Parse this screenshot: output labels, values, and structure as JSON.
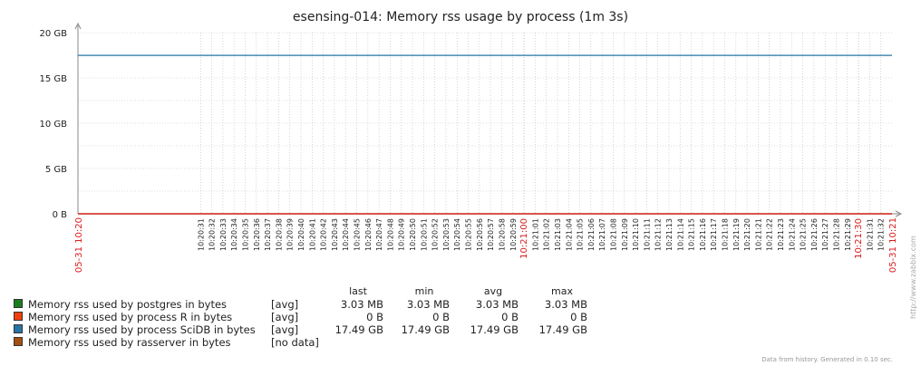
{
  "chart_data": {
    "type": "line",
    "title": "esensing-014: Memory rss usage by process (1m 3s)",
    "yunit": "GB",
    "ylim": [
      0,
      20
    ],
    "yticks": [
      "20 GB",
      "15 GB",
      "10 GB",
      "5 GB",
      "0 B"
    ],
    "ytick_values": [
      20,
      15,
      10,
      5,
      0
    ],
    "x_start_label": "05-31 10:20",
    "x_end_label": "05-31 10:21",
    "x_ticks": [
      {
        "label": "10:20:31",
        "s": 31,
        "red": false
      },
      {
        "label": "10:20:32",
        "s": 32,
        "red": false
      },
      {
        "label": "10:20:33",
        "s": 33,
        "red": false
      },
      {
        "label": "10:20:34",
        "s": 34,
        "red": false
      },
      {
        "label": "10:20:35",
        "s": 35,
        "red": false
      },
      {
        "label": "10:20:36",
        "s": 36,
        "red": false
      },
      {
        "label": "10:20:37",
        "s": 37,
        "red": false
      },
      {
        "label": "10:20:38",
        "s": 38,
        "red": false
      },
      {
        "label": "10:20:39",
        "s": 39,
        "red": false
      },
      {
        "label": "10:20:40",
        "s": 40,
        "red": false
      },
      {
        "label": "10:20:41",
        "s": 41,
        "red": false
      },
      {
        "label": "10:20:42",
        "s": 42,
        "red": false
      },
      {
        "label": "10:20:43",
        "s": 43,
        "red": false
      },
      {
        "label": "10:20:44",
        "s": 44,
        "red": false
      },
      {
        "label": "10:20:45",
        "s": 45,
        "red": false
      },
      {
        "label": "10:20:46",
        "s": 46,
        "red": false
      },
      {
        "label": "10:20:47",
        "s": 47,
        "red": false
      },
      {
        "label": "10:20:48",
        "s": 48,
        "red": false
      },
      {
        "label": "10:20:49",
        "s": 49,
        "red": false
      },
      {
        "label": "10:20:50",
        "s": 50,
        "red": false
      },
      {
        "label": "10:20:51",
        "s": 51,
        "red": false
      },
      {
        "label": "10:20:52",
        "s": 52,
        "red": false
      },
      {
        "label": "10:20:53",
        "s": 53,
        "red": false
      },
      {
        "label": "10:20:54",
        "s": 54,
        "red": false
      },
      {
        "label": "10:20:55",
        "s": 55,
        "red": false
      },
      {
        "label": "10:20:56",
        "s": 56,
        "red": false
      },
      {
        "label": "10:20:57",
        "s": 57,
        "red": false
      },
      {
        "label": "10:20:58",
        "s": 58,
        "red": false
      },
      {
        "label": "10:20:59",
        "s": 59,
        "red": false
      },
      {
        "label": "10:21:00",
        "s": 60,
        "red": true
      },
      {
        "label": "10:21:01",
        "s": 61,
        "red": false
      },
      {
        "label": "10:21:02",
        "s": 62,
        "red": false
      },
      {
        "label": "10:21:03",
        "s": 63,
        "red": false
      },
      {
        "label": "10:21:04",
        "s": 64,
        "red": false
      },
      {
        "label": "10:21:05",
        "s": 65,
        "red": false
      },
      {
        "label": "10:21:06",
        "s": 66,
        "red": false
      },
      {
        "label": "10:21:07",
        "s": 67,
        "red": false
      },
      {
        "label": "10:21:08",
        "s": 68,
        "red": false
      },
      {
        "label": "10:21:09",
        "s": 69,
        "red": false
      },
      {
        "label": "10:21:10",
        "s": 70,
        "red": false
      },
      {
        "label": "10:21:11",
        "s": 71,
        "red": false
      },
      {
        "label": "10:21:12",
        "s": 72,
        "red": false
      },
      {
        "label": "10:21:13",
        "s": 73,
        "red": false
      },
      {
        "label": "10:21:14",
        "s": 74,
        "red": false
      },
      {
        "label": "10:21:15",
        "s": 75,
        "red": false
      },
      {
        "label": "10:21:16",
        "s": 76,
        "red": false
      },
      {
        "label": "10:21:17",
        "s": 77,
        "red": false
      },
      {
        "label": "10:21:18",
        "s": 78,
        "red": false
      },
      {
        "label": "10:21:19",
        "s": 79,
        "red": false
      },
      {
        "label": "10:21:20",
        "s": 80,
        "red": false
      },
      {
        "label": "10:21:21",
        "s": 81,
        "red": false
      },
      {
        "label": "10:21:22",
        "s": 82,
        "red": false
      },
      {
        "label": "10:21:23",
        "s": 83,
        "red": false
      },
      {
        "label": "10:21:24",
        "s": 84,
        "red": false
      },
      {
        "label": "10:21:25",
        "s": 85,
        "red": false
      },
      {
        "label": "10:21:26",
        "s": 86,
        "red": false
      },
      {
        "label": "10:21:27",
        "s": 87,
        "red": false
      },
      {
        "label": "10:21:28",
        "s": 88,
        "red": false
      },
      {
        "label": "10:21:29",
        "s": 89,
        "red": false
      },
      {
        "label": "10:21:30",
        "s": 90,
        "red": true
      },
      {
        "label": "10:21:31",
        "s": 91,
        "red": false
      },
      {
        "label": "10:21:32",
        "s": 92,
        "red": false
      }
    ],
    "x_range_seconds": [
      20,
      93
    ],
    "series": [
      {
        "name": "Memory rss used by postgres in bytes",
        "color": "#1a7f1a",
        "func": "[avg]",
        "last": "3.03 MB",
        "min": "3.03 MB",
        "avg": "3.03 MB",
        "max": "3.03 MB",
        "value_gb": 0.003
      },
      {
        "name": "Memory rss used by process R in bytes",
        "color": "#f2400d",
        "func": "[avg]",
        "last": "0 B",
        "min": "0 B",
        "avg": "0 B",
        "max": "0 B",
        "value_gb": 0
      },
      {
        "name": "Memory rss used by process SciDB in bytes",
        "color": "#2774a6",
        "func": "[avg]",
        "last": "17.49 GB",
        "min": "17.49 GB",
        "avg": "17.49 GB",
        "max": "17.49 GB",
        "value_gb": 17.49
      },
      {
        "name": "Memory rss used by rasserver in bytes",
        "color": "#a54f10",
        "func": "[no data]",
        "last": "",
        "min": "",
        "avg": "",
        "max": "",
        "value_gb": null
      }
    ],
    "legend_headers": {
      "last": "last",
      "min": "min",
      "avg": "avg",
      "max": "max"
    },
    "grid": true,
    "legend_position": "bottom-left"
  },
  "footer_text": "Data from history. Generated in 0.10 sec.",
  "watermark": "http://www.zabbix.com",
  "colors": {
    "grid": "#bbbbbb",
    "axis": "#888888",
    "zero_line": "#d91c1c",
    "red_label": "#d91c1c"
  }
}
